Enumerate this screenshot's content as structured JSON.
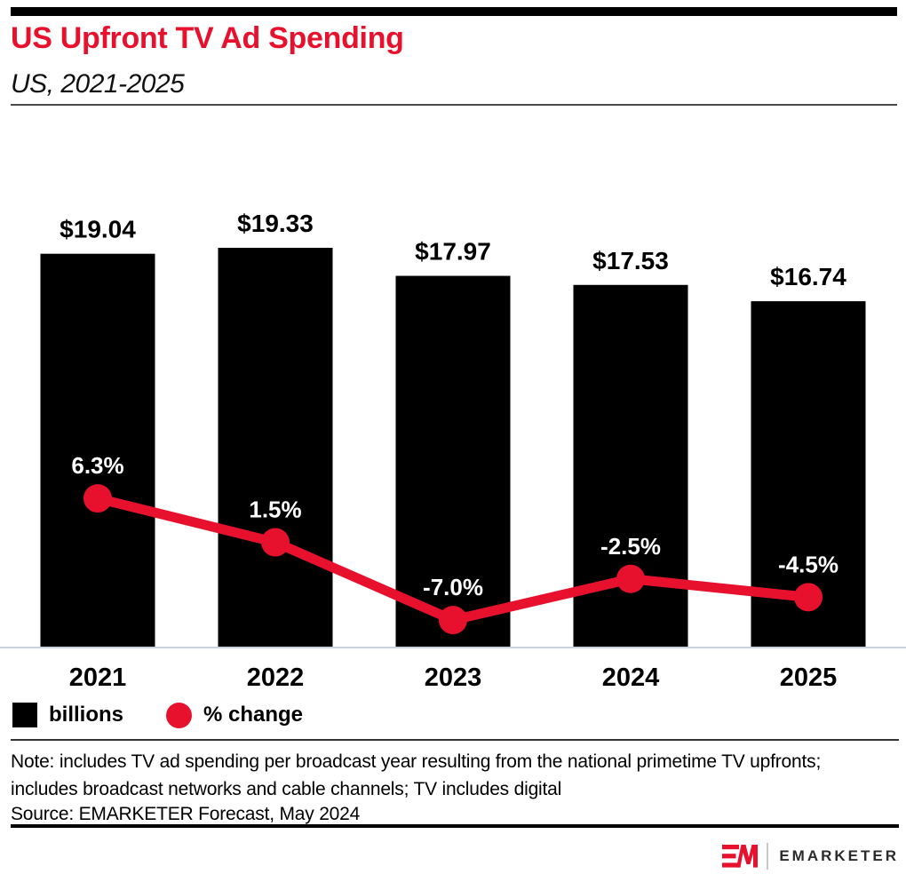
{
  "header": {
    "title": "US Upfront TV Ad Spending",
    "subtitle": "US, 2021-2025"
  },
  "chart_data": {
    "type": "bar",
    "combo_types": [
      "bar",
      "line"
    ],
    "title": "US Upfront TV Ad Spending",
    "subtitle": "US, 2021-2025",
    "categories": [
      "2021",
      "2022",
      "2023",
      "2024",
      "2025"
    ],
    "series": [
      {
        "name": "billions",
        "type": "bar",
        "color": "#000000",
        "values": [
          19.04,
          19.33,
          17.97,
          17.53,
          16.74
        ],
        "labels": [
          "$19.04",
          "$19.33",
          "$17.97",
          "$17.53",
          "$16.74"
        ]
      },
      {
        "name": "% change",
        "type": "line",
        "color": "#e8112d",
        "values": [
          6.3,
          1.5,
          -7.0,
          -2.5,
          -4.5
        ],
        "labels": [
          "6.3%",
          "1.5%",
          "-7.0%",
          "-2.5%",
          "-4.5%"
        ]
      }
    ],
    "legend": [
      {
        "label": "billions",
        "marker": "square",
        "color": "#000000"
      },
      {
        "label": "% change",
        "marker": "circle",
        "color": "#e8112d"
      }
    ],
    "legend_position": "bottom-left",
    "grid": false,
    "axis_line_color": "#c9d4dc",
    "value_label_color": "#000000",
    "pct_label_color": "#ffffff"
  },
  "notes": {
    "note": "Note: includes TV ad spending per broadcast year resulting from the national primetime TV upfronts; includes broadcast networks and cable channels; TV includes digital",
    "source": "Source: EMARKETER Forecast, May 2024"
  },
  "footer": {
    "brand": "EMARKETER"
  }
}
